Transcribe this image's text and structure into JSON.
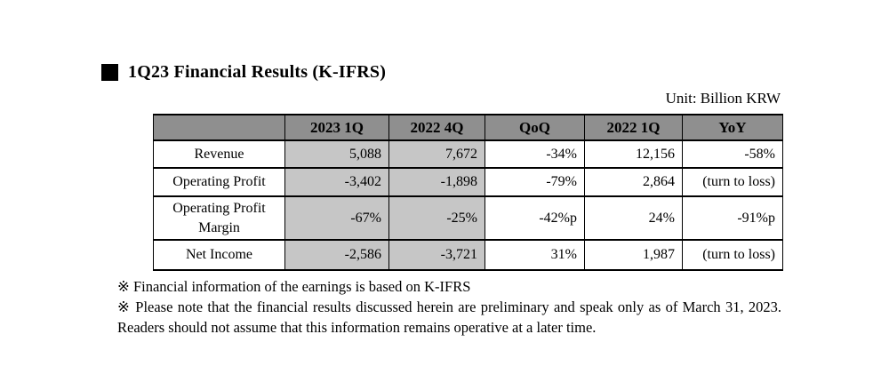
{
  "page": {
    "title": "1Q23 Financial Results (K-IFRS)",
    "unit_label": "Unit: Billion KRW"
  },
  "table": {
    "columns": [
      "",
      "2023 1Q",
      "2022 4Q",
      "QoQ",
      "2022 1Q",
      "YoY"
    ],
    "rows": [
      {
        "label": "Revenue",
        "values": [
          "5,088",
          "7,672",
          "-34%",
          "12,156",
          "-58%"
        ]
      },
      {
        "label": "Operating Profit",
        "values": [
          "-3,402",
          "-1,898",
          "-79%",
          "2,864",
          "(turn to loss)"
        ]
      },
      {
        "label": "Operating Profit Margin",
        "values": [
          "-67%",
          "-25%",
          "-42%p",
          "24%",
          "-91%p"
        ]
      },
      {
        "label": "Net Income",
        "values": [
          "-2,586",
          "-3,721",
          "31%",
          "1,987",
          "(turn to loss)"
        ]
      }
    ],
    "shaded_column_headers": [
      "2023 1Q",
      "2022 4Q"
    ]
  },
  "footnotes": [
    "※ Financial information of the earnings is based on K-IFRS",
    "※ Please note that the financial results discussed herein are preliminary and speak only as of March 31, 2023. Readers should not assume that this information remains operative at a later time."
  ],
  "colors": {
    "header_bg": "#8f8f8f",
    "shaded_cell_bg": "#c6c6c6",
    "border": "#000000",
    "text": "#000000",
    "bullet": "#000000"
  }
}
